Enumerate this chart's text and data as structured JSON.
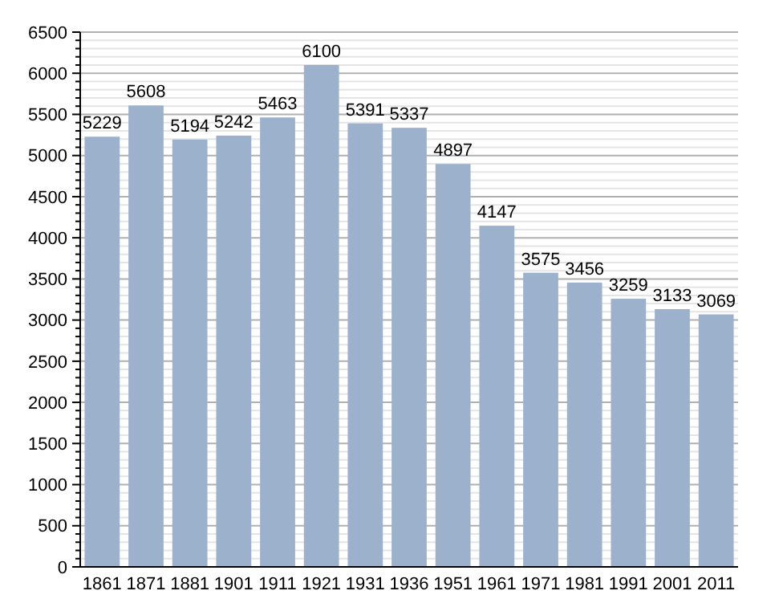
{
  "chart_data": {
    "type": "bar",
    "categories": [
      "1861",
      "1871",
      "1881",
      "1901",
      "1911",
      "1921",
      "1931",
      "1936",
      "1951",
      "1961",
      "1971",
      "1981",
      "1991",
      "2001",
      "2011"
    ],
    "values": [
      5229,
      5608,
      5194,
      5242,
      5463,
      6100,
      5391,
      5337,
      4897,
      4147,
      3575,
      3456,
      3259,
      3133,
      3069
    ],
    "color": "#9bb1cc",
    "data_labels": true,
    "ylim": [
      0,
      6500
    ],
    "grid": "y",
    "yticks": [
      0,
      {
        "value": 100,
        "label": null
      },
      {
        "value": 200,
        "label": null
      },
      {
        "value": 300,
        "label": null
      },
      {
        "value": 400,
        "label": null
      },
      500,
      {
        "value": 600,
        "label": null
      },
      {
        "value": 700,
        "label": null
      },
      {
        "value": 800,
        "label": null
      },
      {
        "value": 900,
        "label": null
      },
      1000,
      {
        "value": 1100,
        "label": null
      },
      {
        "value": 1200,
        "label": null
      },
      {
        "value": 1300,
        "label": null
      },
      {
        "value": 1400,
        "label": null
      },
      1500,
      {
        "value": 1600,
        "label": null
      },
      {
        "value": 1700,
        "label": null
      },
      {
        "value": 1800,
        "label": null
      },
      {
        "value": 1900,
        "label": null
      },
      2000,
      {
        "value": 2100,
        "label": null
      },
      {
        "value": 2200,
        "label": null
      },
      {
        "value": 2300,
        "label": null
      },
      {
        "value": 2400,
        "label": null
      },
      2500,
      {
        "value": 2600,
        "label": null
      },
      {
        "value": 2700,
        "label": null
      },
      {
        "value": 2800,
        "label": null
      },
      {
        "value": 2900,
        "label": null
      },
      3000,
      {
        "value": 3100,
        "label": null
      },
      {
        "value": 3200,
        "label": null
      },
      {
        "value": 3300,
        "label": null
      },
      {
        "value": 3400,
        "label": null
      },
      3500,
      {
        "value": 3600,
        "label": null
      },
      {
        "value": 3700,
        "label": null
      },
      {
        "value": 3800,
        "label": null
      },
      {
        "value": 3900,
        "label": null
      },
      4000,
      {
        "value": 4100,
        "label": null
      },
      {
        "value": 4200,
        "label": null
      },
      {
        "value": 4300,
        "label": null
      },
      {
        "value": 4400,
        "label": null
      },
      4500,
      {
        "value": 4600,
        "label": null
      },
      {
        "value": 4700,
        "label": null
      },
      {
        "value": 4800,
        "label": null
      },
      {
        "value": 4900,
        "label": null
      },
      5000,
      {
        "value": 5100,
        "label": null
      },
      {
        "value": 5200,
        "label": null
      },
      {
        "value": 5300,
        "label": null
      },
      {
        "value": 5400,
        "label": null
      },
      5500,
      {
        "value": 5600,
        "label": null
      },
      {
        "value": 5700,
        "label": null
      },
      {
        "value": 5800,
        "label": null
      },
      {
        "value": 5900,
        "label": null
      },
      6000,
      {
        "value": 6100,
        "label": null
      },
      {
        "value": 6200,
        "label": null
      },
      {
        "value": 6300,
        "label": null
      },
      {
        "value": 6400,
        "label": null
      },
      6500
    ]
  }
}
